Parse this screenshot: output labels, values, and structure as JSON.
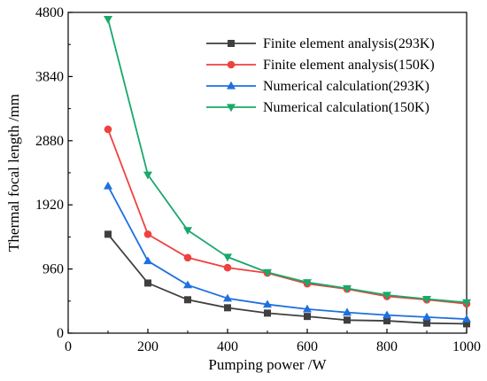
{
  "chart_data": {
    "type": "line",
    "xlabel": "Pumping power /W",
    "ylabel": "Thermal focal length /mm",
    "xlim": [
      0,
      1000
    ],
    "ylim": [
      0,
      4800
    ],
    "xticks": [
      0,
      200,
      400,
      600,
      800,
      1000
    ],
    "yticks": [
      0,
      960,
      1920,
      2880,
      3840,
      4800
    ],
    "grid": false,
    "legend_position": "top-right",
    "x": [
      100,
      200,
      300,
      400,
      500,
      600,
      700,
      800,
      900,
      1000
    ],
    "series": [
      {
        "name": "Finite element analysis(293K)",
        "color": "#3f3f3f",
        "marker": "square",
        "values": [
          1480,
          750,
          500,
          380,
          300,
          250,
          195,
          185,
          150,
          140
        ]
      },
      {
        "name": "Finite element analysis(150K)",
        "color": "#f0413e",
        "marker": "circle",
        "values": [
          3050,
          1480,
          1130,
          980,
          900,
          740,
          660,
          550,
          500,
          440
        ]
      },
      {
        "name": "Numerical calculation(293K)",
        "color": "#1f6fe0",
        "marker": "triangle-up",
        "values": [
          2200,
          1080,
          720,
          520,
          430,
          360,
          310,
          270,
          240,
          210
        ]
      },
      {
        "name": "Numerical calculation(150K)",
        "color": "#1aa86b",
        "marker": "triangle-down",
        "values": [
          4700,
          2370,
          1540,
          1140,
          910,
          760,
          670,
          570,
          510,
          460
        ]
      }
    ]
  }
}
